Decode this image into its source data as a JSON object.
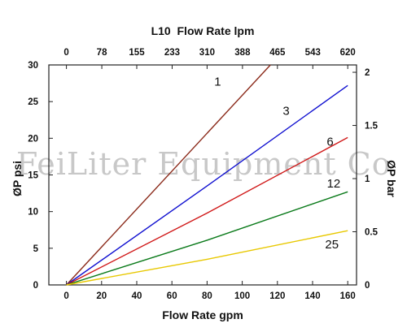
{
  "chart_data": {
    "type": "line",
    "title": "L10  Flow Rate lpm",
    "xlabel": "Flow Rate gpm",
    "ylabel": "ØP psi",
    "y2label": "ØP bar",
    "xlim": [
      -10,
      165
    ],
    "ylim": [
      0,
      30
    ],
    "y2lim": [
      0,
      2.069
    ],
    "x_ticks": [
      0,
      20,
      40,
      60,
      80,
      100,
      120,
      140,
      160
    ],
    "y_ticks": [
      0,
      5,
      10,
      15,
      20,
      25,
      30
    ],
    "y2_ticks": [
      0,
      0.5,
      1,
      1.5,
      2
    ],
    "y2_tick_labels": [
      "0",
      "0.5",
      "1",
      "1.5",
      "2"
    ],
    "x2_ticks": [
      0,
      78,
      155,
      233,
      310,
      388,
      465,
      543,
      620
    ],
    "x2_tick_labels": [
      "0",
      "78",
      "155",
      "233",
      "310",
      "388",
      "465",
      "543",
      "620"
    ],
    "x2_to_x_factor": 3.875,
    "grid": false,
    "series": [
      {
        "name": "1",
        "color": "#8b2a1a",
        "x": [
          0,
          116
        ],
        "y": [
          0,
          30
        ],
        "label_at": [
          86,
          27.2
        ]
      },
      {
        "name": "3",
        "color": "#1010d0",
        "x": [
          0,
          80,
          160
        ],
        "y": [
          0,
          13.5,
          27.2
        ],
        "label_at": [
          125,
          23.2
        ]
      },
      {
        "name": "6",
        "color": "#d01818",
        "x": [
          0,
          80,
          160
        ],
        "y": [
          0,
          9.8,
          20.1
        ],
        "label_at": [
          150,
          19.0
        ]
      },
      {
        "name": "12",
        "color": "#0a7a1a",
        "x": [
          0,
          80,
          160
        ],
        "y": [
          0,
          6.1,
          12.7
        ],
        "label_at": [
          152,
          13.3
        ]
      },
      {
        "name": "25",
        "color": "#e8c800",
        "x": [
          0,
          80,
          160
        ],
        "y": [
          0,
          3.5,
          7.4
        ],
        "label_at": [
          151,
          5.0
        ]
      }
    ]
  },
  "watermark": "FeiLiter Equipment Co"
}
